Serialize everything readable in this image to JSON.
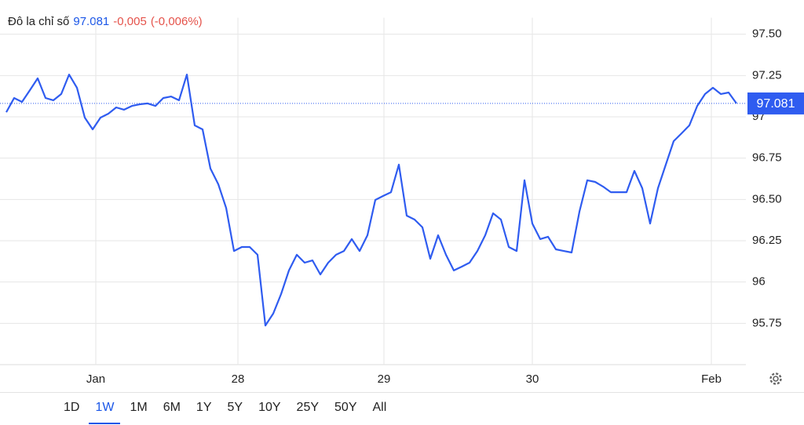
{
  "chart_data": {
    "type": "line",
    "title": "Đô la chỉ số",
    "last_value": 97.081,
    "change": "-0,005",
    "change_pct": "(-0,006%)",
    "color": "#2f5cf0",
    "up_color": "#1a56e8",
    "down_color": "#e5534b",
    "grid": true,
    "series": [
      {
        "name": "Đô la chỉ số",
        "color": "#2f5cf0",
        "values": [
          97.028,
          97.114,
          97.09,
          97.161,
          97.233,
          97.114,
          97.1,
          97.138,
          97.256,
          97.176,
          96.995,
          96.924,
          96.995,
          97.019,
          97.057,
          97.043,
          97.066,
          97.076,
          97.081,
          97.066,
          97.114,
          97.123,
          97.1,
          97.256,
          96.948,
          96.924,
          96.687,
          96.592,
          96.449,
          96.188,
          96.212,
          96.212,
          96.165,
          95.737,
          95.809,
          95.927,
          96.07,
          96.165,
          96.117,
          96.131,
          96.046,
          96.117,
          96.165,
          96.188,
          96.26,
          96.188,
          96.283,
          96.497,
          96.521,
          96.544,
          96.711,
          96.402,
          96.378,
          96.331,
          96.141,
          96.283,
          96.165,
          96.07,
          96.093,
          96.117,
          96.188,
          96.283,
          96.416,
          96.378,
          96.212,
          96.188,
          96.616,
          96.354,
          96.26,
          96.274,
          96.198,
          96.188,
          96.179,
          96.426,
          96.616,
          96.606,
          96.578,
          96.544,
          96.544,
          96.544,
          96.673,
          96.568,
          96.354,
          96.568,
          96.711,
          96.853,
          96.9,
          96.948,
          97.066,
          97.138,
          97.176,
          97.138,
          97.147,
          97.081
        ]
      }
    ],
    "xlim": [
      0,
      94.2
    ],
    "xticks": [
      {
        "value": 11.4,
        "label": "Jan"
      },
      {
        "value": 29.5,
        "label": "28"
      },
      {
        "value": 48.1,
        "label": "29"
      },
      {
        "value": 67,
        "label": "30"
      },
      {
        "value": 89.8,
        "label": "Feb"
      }
    ],
    "ylim": [
      95.5,
      97.6
    ],
    "yticks": [
      95.75,
      96,
      96.25,
      {
        "value": 96.5,
        "label": "96.50"
      },
      96.75,
      97,
      97.25,
      {
        "value": 97.5,
        "label": "97.50"
      }
    ]
  },
  "ranges": [
    "1D",
    "1W",
    "1M",
    "6M",
    "1Y",
    "5Y",
    "10Y",
    "25Y",
    "50Y",
    "All"
  ],
  "active_range": 1
}
